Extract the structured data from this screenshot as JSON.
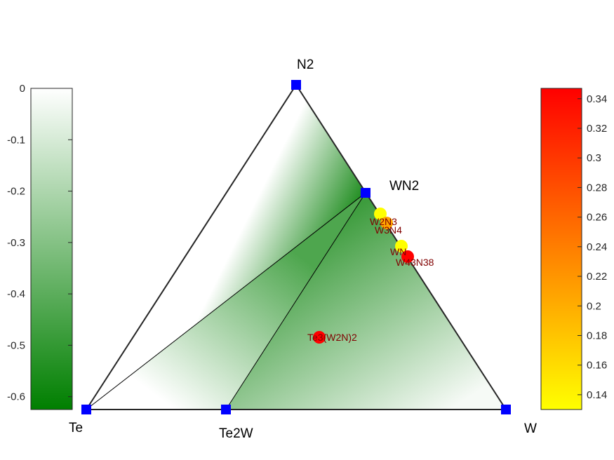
{
  "chart_data": {
    "type": "ternary-phase-diagram",
    "vertices": [
      {
        "name": "Te",
        "x": 0,
        "y": 0
      },
      {
        "name": "Te2W",
        "x": 0.3333,
        "y": 0
      },
      {
        "name": "W",
        "x": 1,
        "y": 0
      },
      {
        "name": "N2",
        "x": 0.5,
        "y": 1
      },
      {
        "name": "WN2",
        "x": 0.6667,
        "y": 0.6667
      }
    ],
    "stable_phases": [
      {
        "name": "Te",
        "energy": 0
      },
      {
        "name": "Te2W",
        "energy": -0.62
      },
      {
        "name": "W",
        "energy": 0
      },
      {
        "name": "N2",
        "energy": 0
      },
      {
        "name": "WN2",
        "energy": -0.62
      }
    ],
    "tie_lines": [
      [
        "Te",
        "WN2"
      ],
      [
        "Te2W",
        "WN2"
      ]
    ],
    "unstable_phases": [
      {
        "name": "W2N3",
        "x": 0.7,
        "y": 0.6,
        "e_above_hull": 0.13
      },
      {
        "name": "W3N4",
        "x": 0.714,
        "y": 0.571,
        "e_above_hull": 0.25
      },
      {
        "name": "WN",
        "x": 0.75,
        "y": 0.5,
        "e_above_hull": 0.14
      },
      {
        "name": "W43N38",
        "x": 0.768,
        "y": 0.469,
        "e_above_hull": 0.34
      },
      {
        "name": "Te3(W2N)2",
        "x": 0.56,
        "y": 0.22,
        "e_above_hull": 0.34
      }
    ],
    "formation_energy_colorbar": {
      "ticks": [
        "0",
        "-0.1",
        "-0.2",
        "-0.3",
        "-0.4",
        "-0.5",
        "-0.6"
      ],
      "tick_values": [
        0,
        -0.1,
        -0.2,
        -0.3,
        -0.4,
        -0.5,
        -0.6
      ],
      "range": [
        -0.625,
        0
      ],
      "colors": [
        "#ffffff",
        "#007f00"
      ]
    },
    "hull_distance_colorbar": {
      "ticks": [
        "0.34",
        "0.32",
        "0.3",
        "0.28",
        "0.26",
        "0.24",
        "0.22",
        "0.2",
        "0.18",
        "0.16",
        "0.14"
      ],
      "tick_values": [
        0.34,
        0.32,
        0.3,
        0.28,
        0.26,
        0.24,
        0.22,
        0.2,
        0.18,
        0.16,
        0.14
      ],
      "range": [
        0.13,
        0.347
      ],
      "colors": [
        "#ffff00",
        "#ff0000"
      ]
    },
    "colors": {
      "vertex_marker": "#0000ff",
      "edge": "#000000",
      "label": "#800000"
    }
  }
}
